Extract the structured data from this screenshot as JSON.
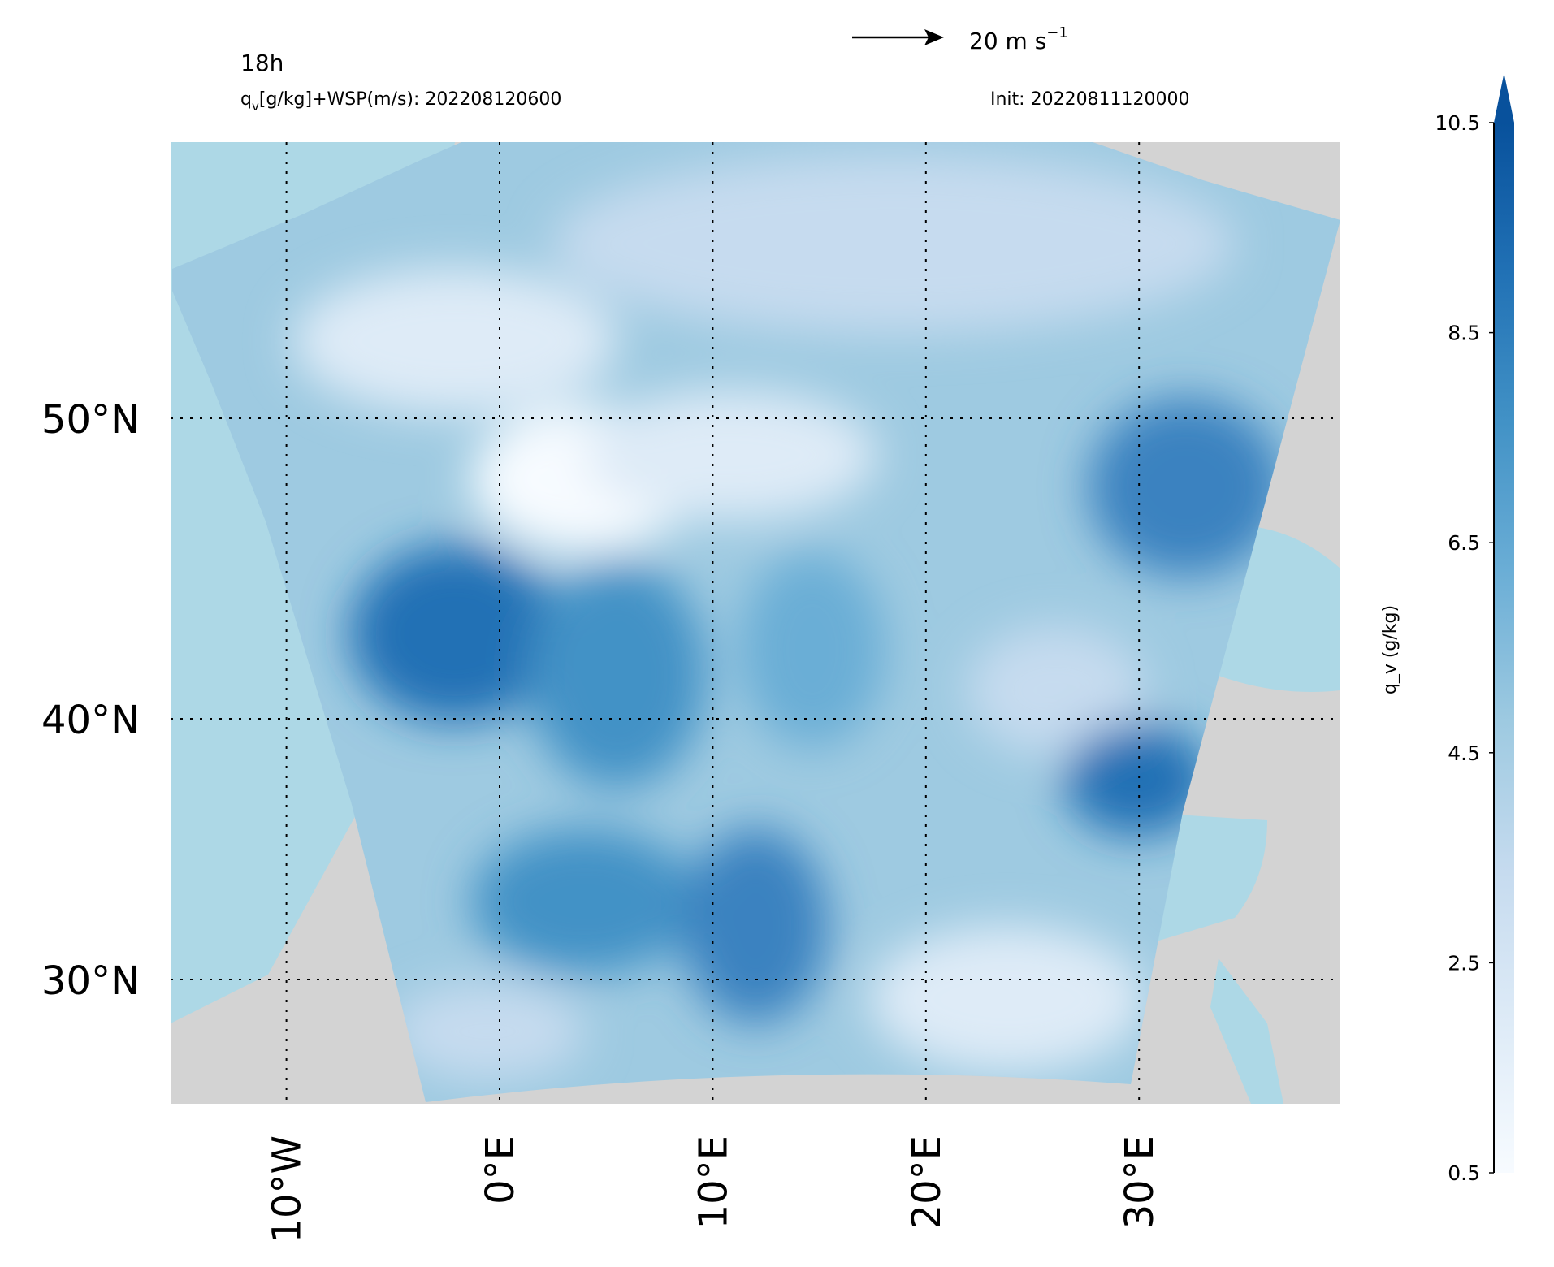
{
  "map": {
    "header": {
      "lead": "18h",
      "field_symbol": "q",
      "field_subscript": "v",
      "field_rest": "[g/kg]+WSP(m/s): 202208120600",
      "init": "Init: 20220811120000",
      "reference_vector": {
        "text": "20 m s",
        "exponent": "−1"
      }
    },
    "lon_ticks": [
      {
        "value": -10,
        "label": "10°W"
      },
      {
        "value": 0,
        "label": "0°E"
      },
      {
        "value": 10,
        "label": "10°E"
      },
      {
        "value": 20,
        "label": "20°E"
      },
      {
        "value": 30,
        "label": "30°E"
      }
    ],
    "lat_ticks": [
      {
        "value": 50,
        "label": "50°N"
      },
      {
        "value": 40,
        "label": "40°N"
      },
      {
        "value": 30,
        "label": "30°N"
      }
    ],
    "grid": true,
    "colorbar": {
      "label": "q_v (g/kg)",
      "range": [
        0.5,
        10.5
      ],
      "ticks": [
        0.5,
        2.5,
        4.5,
        6.5,
        8.5,
        10.5
      ],
      "extend": "max",
      "colors": [
        "#f7fbff",
        "#deebf7",
        "#c6dbef",
        "#9ecae1",
        "#6baed6",
        "#4292c6",
        "#2171b5",
        "#08519c"
      ]
    }
  }
}
